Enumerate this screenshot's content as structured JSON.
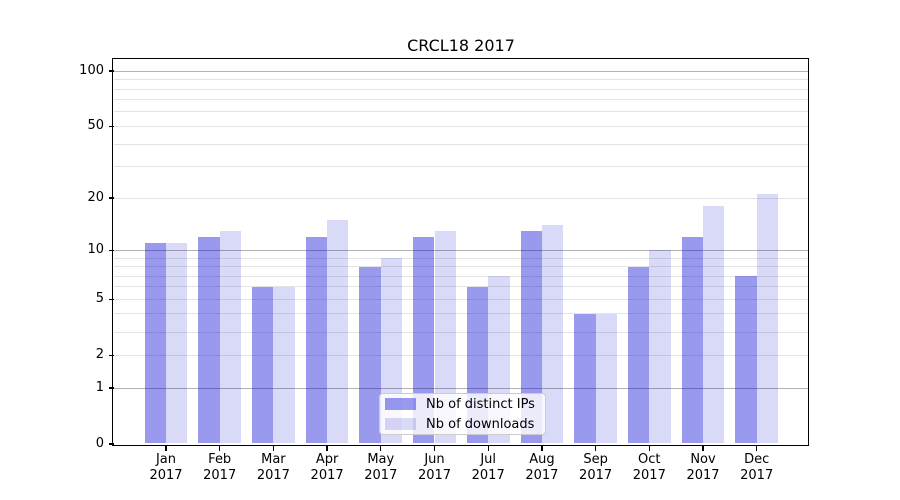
{
  "title": "CRCL18 2017",
  "chart_data": {
    "type": "bar",
    "title": "CRCL18 2017",
    "categories": [
      "Jan",
      "Feb",
      "Mar",
      "Apr",
      "May",
      "Jun",
      "Jul",
      "Aug",
      "Sep",
      "Oct",
      "Nov",
      "Dec"
    ],
    "x_year_label": "2017",
    "series": [
      {
        "name": "Nb of distinct IPs",
        "color": "#9999ed",
        "css_color": "rgba(0,0,210,0.40)",
        "values": [
          11,
          12,
          6,
          12,
          8,
          12,
          6,
          13,
          4,
          8,
          12,
          7
        ]
      },
      {
        "name": "Nb of downloads",
        "color": "#d9d9f8",
        "css_color": "rgba(0,0,210,0.15)",
        "values": [
          11,
          13,
          6,
          15,
          9,
          13,
          7,
          14,
          4,
          10,
          18,
          21
        ]
      }
    ],
    "yscale": "symlog (position ~ log10(1+v))",
    "ylim": [
      0,
      116
    ],
    "y_ticks": [
      0,
      1,
      2,
      5,
      10,
      20,
      50,
      100
    ],
    "y_tick_labels": [
      "0",
      "1",
      "2",
      "5",
      "10",
      "20",
      "50",
      "100"
    ],
    "y_minor_ticks": [
      3,
      4,
      6,
      7,
      8,
      9,
      30,
      40,
      60,
      70,
      80,
      90
    ],
    "grid": true,
    "legend_position": "lower center"
  },
  "colors": {
    "grid_decade": "#b2b2b2",
    "grid_minor": "#e4e4e4",
    "spine": "#000000",
    "background": "#ffffff"
  }
}
